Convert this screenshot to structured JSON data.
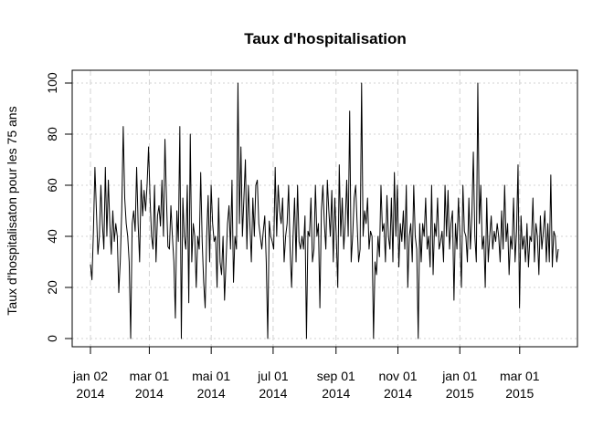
{
  "chart_data": {
    "type": "line",
    "title": "Taux d'hospitalisation",
    "xlabel": "",
    "ylabel": "Taux d'hospitalisaton pour les 75 ans",
    "x_start": "2014-01-02",
    "x_end": "2015-04-08",
    "x_ticks": [
      {
        "date": "2014-01-02",
        "line1": "jan 02",
        "line2": "2014"
      },
      {
        "date": "2014-03-01",
        "line1": "mar 01",
        "line2": "2014"
      },
      {
        "date": "2014-05-01",
        "line1": "mai 01",
        "line2": "2014"
      },
      {
        "date": "2014-07-01",
        "line1": "jul 01",
        "line2": "2014"
      },
      {
        "date": "2014-09-01",
        "line1": "sep 01",
        "line2": "2014"
      },
      {
        "date": "2014-11-01",
        "line1": "nov 01",
        "line2": "2014"
      },
      {
        "date": "2015-01-01",
        "line1": "jan 01",
        "line2": "2015"
      },
      {
        "date": "2015-03-01",
        "line1": "mar 01",
        "line2": "2015"
      }
    ],
    "y_ticks": [
      0,
      20,
      40,
      60,
      80,
      100
    ],
    "ylim": [
      0,
      100
    ],
    "grid": true,
    "series": [
      {
        "color": "#000000",
        "values": [
          29,
          23,
          42,
          67,
          50,
          33,
          40,
          60,
          45,
          35,
          67,
          40,
          62,
          45,
          33,
          50,
          38,
          45,
          40,
          18,
          30,
          50,
          83,
          55,
          45,
          40,
          30,
          0,
          45,
          50,
          42,
          67,
          45,
          30,
          62,
          48,
          58,
          50,
          60,
          75,
          55,
          40,
          35,
          60,
          30,
          48,
          52,
          44,
          62,
          40,
          78,
          55,
          36,
          35,
          52,
          40,
          30,
          8,
          50,
          38,
          83,
          0,
          55,
          40,
          35,
          60,
          14,
          80,
          30,
          45,
          40,
          20,
          40,
          35,
          65,
          38,
          22,
          12,
          40,
          56,
          30,
          60,
          45,
          38,
          40,
          20,
          55,
          30,
          25,
          40,
          15,
          30,
          45,
          52,
          35,
          62,
          22,
          40,
          35,
          100,
          45,
          75,
          40,
          55,
          70,
          35,
          60,
          45,
          30,
          55,
          40,
          60,
          62,
          45,
          40,
          35,
          42,
          48,
          30,
          0,
          46,
          40,
          38,
          35,
          67,
          40,
          60,
          50,
          45,
          55,
          30,
          40,
          45,
          60,
          35,
          20,
          40,
          55,
          30,
          60,
          38,
          35,
          40,
          35,
          48,
          0,
          42,
          40,
          55,
          30,
          35,
          60,
          40,
          45,
          12,
          50,
          60,
          45,
          35,
          62,
          50,
          40,
          58,
          30,
          55,
          40,
          20,
          68,
          40,
          55,
          35,
          45,
          62,
          40,
          89,
          30,
          40,
          55,
          60,
          45,
          30,
          35,
          100,
          40,
          50,
          45,
          55,
          35,
          42,
          40,
          0,
          30,
          25,
          40,
          32,
          60,
          42,
          45,
          30,
          56,
          40,
          35,
          55,
          30,
          65,
          40,
          60,
          28,
          45,
          38,
          50,
          35,
          60,
          20,
          40,
          45,
          30,
          60,
          40,
          35,
          0,
          45,
          30,
          45,
          40,
          55,
          35,
          40,
          28,
          60,
          25,
          45,
          40,
          55,
          35,
          38,
          42,
          30,
          60,
          40,
          58,
          35,
          45,
          50,
          15,
          45,
          35,
          55,
          40,
          20,
          60,
          42,
          40,
          30,
          55,
          35,
          48,
          73,
          40,
          30,
          100,
          45,
          60,
          35,
          40,
          20,
          55,
          30,
          40,
          48,
          35,
          42,
          38,
          45,
          40,
          30,
          50,
          35,
          60,
          38,
          45,
          25,
          40,
          35,
          55,
          30,
          42,
          68,
          12,
          48,
          35,
          40,
          30,
          45,
          28,
          40,
          38,
          55,
          30,
          45,
          40,
          25,
          48,
          35,
          42,
          50,
          30,
          45,
          30,
          64,
          28,
          42,
          40,
          30,
          35
        ]
      }
    ]
  }
}
